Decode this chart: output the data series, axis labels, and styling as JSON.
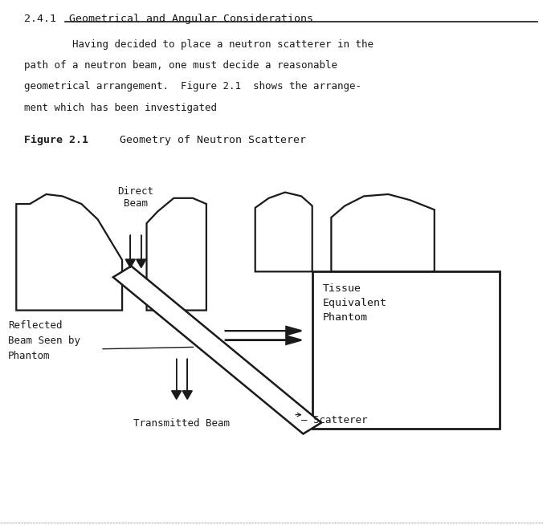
{
  "bg_color": "#ffffff",
  "line_color": "#1a1a1a",
  "text_color": "#1a1a1a",
  "title": "2.4.1  Geometrical and Angular Considerations",
  "para1": "        Having decided to place a neutron scatterer in the",
  "para2": "path of a neutron beam, one must decide a reasonable",
  "para3": "geometrical arrangement.  Figure 2.1  shows the arrange-",
  "para4": "ment which has been investigated",
  "fig_label_bold": "Figure 2.1",
  "fig_label_normal": "   Geometry of Neutron Scatterer",
  "label_direct_beam": "Direct\nBeam",
  "label_reflected_ln1": "Reflected",
  "label_reflected_ln2": "Beam Seen by",
  "label_reflected_ln3": "Phantom",
  "label_transmitted": "Transmitted Beam",
  "label_scatterer": "Scatterer",
  "label_tissue_ln1": "Tissue",
  "label_tissue_ln2": "Equivalent",
  "label_tissue_ln3": "Phantom"
}
